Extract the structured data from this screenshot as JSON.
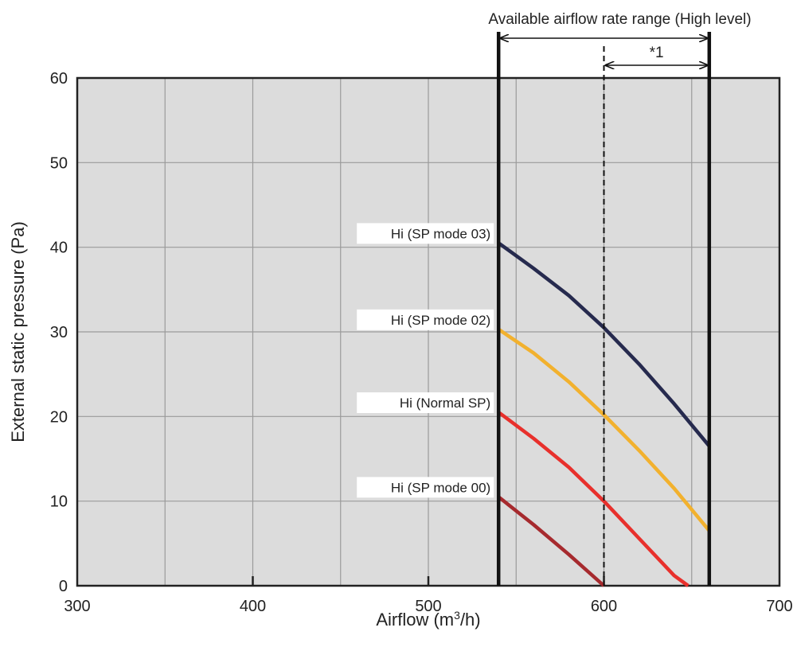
{
  "chart_data": {
    "type": "line",
    "title": "",
    "xlabel": "Airflow (m",
    "xlabel_sup": "3",
    "xlabel_suffix": "/h)",
    "ylabel": "External static pressure (Pa)",
    "xlim": [
      300,
      700
    ],
    "ylim": [
      0,
      60
    ],
    "xticks": [
      300,
      400,
      500,
      600,
      700
    ],
    "xticks_minor": [
      350,
      450,
      550,
      650
    ],
    "yticks": [
      0,
      10,
      20,
      30,
      40,
      50,
      60
    ],
    "grid": true,
    "colors": {
      "plot_bg": "#dcdcdc",
      "grid": "#9a9a9a",
      "frame": "#222222"
    },
    "series": [
      {
        "name": "Hi (SP mode 03)",
        "color": "#262a4e",
        "x": [
          540,
          560,
          580,
          600,
          620,
          640,
          660
        ],
        "y": [
          40.5,
          37.5,
          34.3,
          30.5,
          26.2,
          21.5,
          16.5
        ]
      },
      {
        "name": "Hi (SP mode 02)",
        "color": "#f2b12e",
        "x": [
          540,
          560,
          580,
          600,
          620,
          640,
          660
        ],
        "y": [
          30.3,
          27.5,
          24.1,
          20.2,
          16.0,
          11.5,
          6.5
        ]
      },
      {
        "name": "Hi (Normal SP)",
        "color": "#e8302c",
        "x": [
          540,
          560,
          580,
          600,
          620,
          640,
          648
        ],
        "y": [
          20.5,
          17.4,
          14.0,
          10.0,
          5.6,
          1.2,
          0
        ]
      },
      {
        "name": "Hi (SP mode 00)",
        "color": "#a62a2e",
        "x": [
          540,
          560,
          580,
          600
        ],
        "y": [
          10.5,
          7.2,
          3.7,
          0
        ]
      }
    ],
    "range_lines": {
      "min_x": 540,
      "max_x": 660,
      "dashed_x": 600
    },
    "annotations": {
      "range_label": "Available airflow rate range (High level)",
      "note_label": "*1"
    }
  }
}
